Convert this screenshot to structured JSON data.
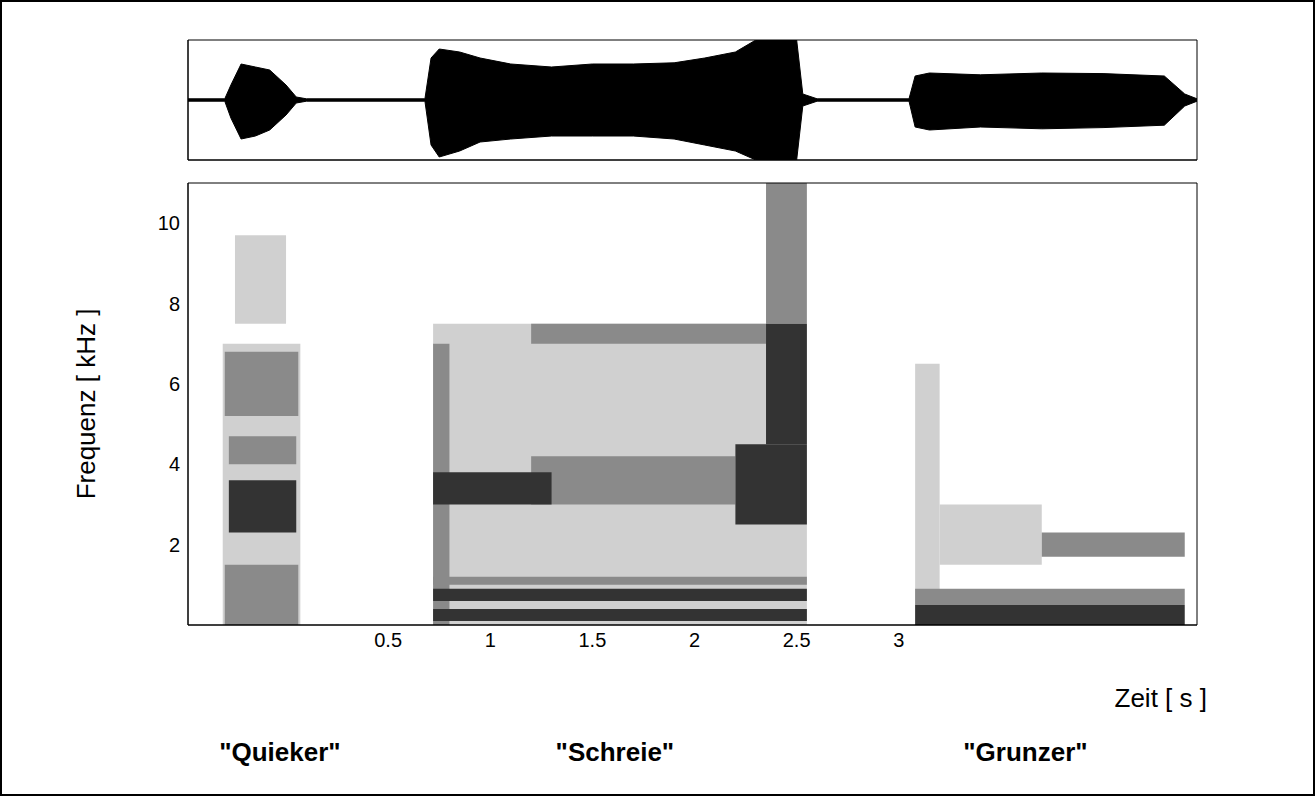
{
  "chart_data": [
    {
      "type": "area",
      "tick_labels": false,
      "color": "#000000",
      "xlim": [
        -0.48,
        4.46
      ],
      "ylim": [
        -1,
        1
      ],
      "x": [
        -0.48,
        -0.3,
        -0.27,
        -0.22,
        -0.15,
        -0.08,
        0.0,
        0.05,
        0.1,
        0.68,
        0.71,
        0.75,
        0.85,
        0.95,
        1.1,
        1.3,
        1.5,
        1.7,
        1.9,
        2.05,
        2.2,
        2.3,
        2.4,
        2.5,
        2.53,
        2.6,
        3.05,
        3.08,
        3.15,
        3.4,
        3.7,
        4.0,
        4.3,
        4.4,
        4.46
      ],
      "upper": [
        0.02,
        0.02,
        0.25,
        0.6,
        0.55,
        0.5,
        0.25,
        0.05,
        0.02,
        0.02,
        0.7,
        0.85,
        0.8,
        0.7,
        0.6,
        0.55,
        0.6,
        0.6,
        0.62,
        0.7,
        0.8,
        1.0,
        1.0,
        1.0,
        0.1,
        0.02,
        0.02,
        0.4,
        0.45,
        0.42,
        0.45,
        0.44,
        0.4,
        0.1,
        0.02
      ],
      "lower": [
        -0.02,
        -0.02,
        -0.3,
        -0.65,
        -0.6,
        -0.5,
        -0.25,
        -0.05,
        -0.02,
        -0.02,
        -0.75,
        -0.95,
        -0.85,
        -0.7,
        -0.65,
        -0.6,
        -0.6,
        -0.6,
        -0.65,
        -0.75,
        -0.85,
        -1.0,
        -1.0,
        -1.0,
        -0.1,
        -0.02,
        -0.02,
        -0.45,
        -0.5,
        -0.45,
        -0.48,
        -0.46,
        -0.42,
        -0.1,
        -0.02
      ]
    },
    {
      "type": "heatmap",
      "xlabel": "Zeit [ s ]",
      "ylabel": "Frequenz [ kHz ]",
      "xlim": [
        -0.48,
        4.46
      ],
      "ylim": [
        0,
        11
      ],
      "xticks": [
        0.5,
        1,
        1.5,
        2,
        2.5,
        3
      ],
      "yticks": [
        2,
        4,
        6,
        8,
        10
      ],
      "colors": [
        "#d0d0d0",
        "#8a8a8a",
        "#333333"
      ],
      "cells": [
        {
          "x0": -0.31,
          "x1": 0.07,
          "y0": 0,
          "y1": 7,
          "level": 1
        },
        {
          "x0": -0.25,
          "x1": 0.0,
          "y0": 7.5,
          "y1": 9.7,
          "level": 1
        },
        {
          "x0": -0.3,
          "x1": 0.06,
          "y0": 0,
          "y1": 1.5,
          "level": 2
        },
        {
          "x0": -0.3,
          "x1": 0.06,
          "y0": 5.2,
          "y1": 6.8,
          "level": 2
        },
        {
          "x0": -0.28,
          "x1": 0.05,
          "y0": 4.0,
          "y1": 4.7,
          "level": 2
        },
        {
          "x0": -0.28,
          "x1": 0.05,
          "y0": 2.3,
          "y1": 3.6,
          "level": 3
        },
        {
          "x0": 0.72,
          "x1": 2.55,
          "y0": 0,
          "y1": 7.5,
          "level": 1
        },
        {
          "x0": 0.72,
          "x1": 0.8,
          "y0": 0,
          "y1": 7,
          "level": 2
        },
        {
          "x0": 1.2,
          "x1": 2.2,
          "y0": 3.0,
          "y1": 4.2,
          "level": 2
        },
        {
          "x0": 1.2,
          "x1": 2.35,
          "y0": 7.0,
          "y1": 7.5,
          "level": 2
        },
        {
          "x0": 0.72,
          "x1": 2.55,
          "y0": 1.0,
          "y1": 1.2,
          "level": 2
        },
        {
          "x0": 0.72,
          "x1": 2.55,
          "y0": 0.1,
          "y1": 0.4,
          "level": 3
        },
        {
          "x0": 0.72,
          "x1": 2.55,
          "y0": 0.6,
          "y1": 0.9,
          "level": 3
        },
        {
          "x0": 0.72,
          "x1": 1.3,
          "y0": 3.0,
          "y1": 3.8,
          "level": 3
        },
        {
          "x0": 2.35,
          "x1": 2.55,
          "y0": 7.5,
          "y1": 11,
          "level": 2
        },
        {
          "x0": 2.2,
          "x1": 2.55,
          "y0": 2.5,
          "y1": 4.5,
          "level": 3
        },
        {
          "x0": 2.35,
          "x1": 2.55,
          "y0": 4.5,
          "y1": 7.5,
          "level": 3
        },
        {
          "x0": 3.08,
          "x1": 3.2,
          "y0": 0,
          "y1": 6.5,
          "level": 1
        },
        {
          "x0": 3.2,
          "x1": 3.7,
          "y0": 1.5,
          "y1": 3,
          "level": 1
        },
        {
          "x0": 3.08,
          "x1": 4.4,
          "y0": 0.5,
          "y1": 0.9,
          "level": 2
        },
        {
          "x0": 3.7,
          "x1": 4.4,
          "y0": 1.7,
          "y1": 2.3,
          "level": 2
        },
        {
          "x0": 3.08,
          "x1": 4.4,
          "y0": 0,
          "y1": 0.5,
          "level": 3
        }
      ],
      "annotations": [
        {
          "text": "\"Quieker\"",
          "x": -0.03
        },
        {
          "text": "\"Schreie\"",
          "x": 1.61
        },
        {
          "text": "\"Grunzer\"",
          "x": 3.62
        }
      ]
    }
  ]
}
